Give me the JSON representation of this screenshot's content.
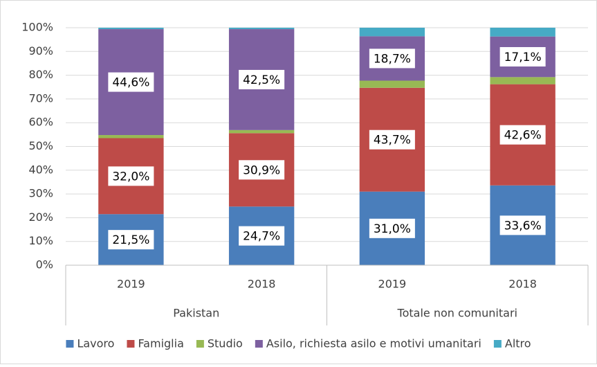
{
  "chart_data": {
    "type": "stacked_bar",
    "groups": [
      {
        "name": "Pakistan",
        "categories": [
          "2019",
          "2018"
        ]
      },
      {
        "name": "Totale non comunitari",
        "categories": [
          "2019",
          "2018"
        ]
      }
    ],
    "series": [
      {
        "name": "Lavoro",
        "color": "#4a7ebb",
        "values": [
          21.5,
          24.7,
          31.0,
          33.6
        ],
        "value_labels": [
          "21,5%",
          "24,7%",
          "31,0%",
          "33,6%"
        ]
      },
      {
        "name": "Famiglia",
        "color": "#be4b48",
        "values": [
          32.0,
          30.9,
          43.7,
          42.6
        ],
        "value_labels": [
          "32,0%",
          "30,9%",
          "43,7%",
          "42,6%"
        ]
      },
      {
        "name": "Studio",
        "color": "#98b954",
        "values": [
          1.3,
          1.3,
          3.0,
          3.0
        ]
      },
      {
        "name": "Asilo, richiesta asilo e motivi umanitari",
        "color": "#7d60a0",
        "values": [
          44.6,
          42.5,
          18.7,
          17.1
        ],
        "value_labels": [
          "44,6%",
          "42,5%",
          "18,7%",
          "17,1%"
        ]
      },
      {
        "name": "Altro",
        "color": "#46aac5",
        "values": [
          0.6,
          0.6,
          3.6,
          3.7
        ]
      }
    ],
    "ylim": [
      0,
      100
    ],
    "yticks": [
      {
        "value": 0,
        "label": "0%"
      },
      {
        "value": 10,
        "label": "10%"
      },
      {
        "value": 20,
        "label": "20%"
      },
      {
        "value": 30,
        "label": "30%"
      },
      {
        "value": 40,
        "label": "40%"
      },
      {
        "value": 50,
        "label": "50%"
      },
      {
        "value": 60,
        "label": "60%"
      },
      {
        "value": 70,
        "label": "70%"
      },
      {
        "value": 80,
        "label": "80%"
      },
      {
        "value": 90,
        "label": "90%"
      },
      {
        "value": 100,
        "label": "100%"
      }
    ],
    "grid": true
  }
}
